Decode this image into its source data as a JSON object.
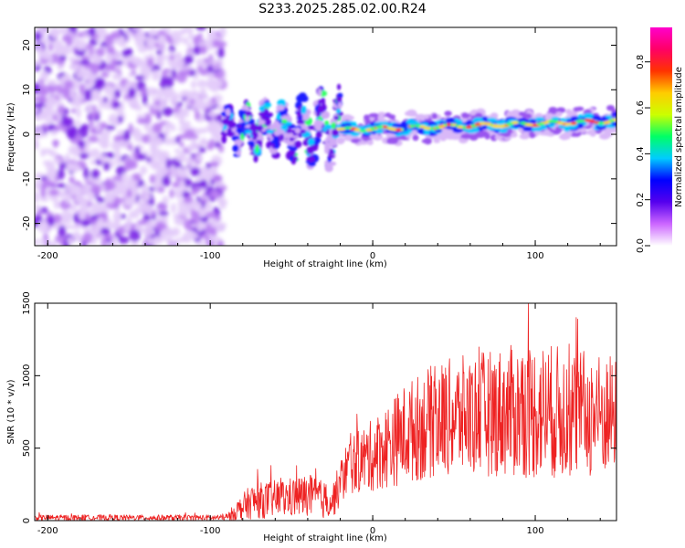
{
  "title": "S233.2025.285.02.00.R24",
  "chart_data": [
    {
      "type": "heatmap",
      "name": "spectrogram",
      "xlabel": "Height of straight line (km)",
      "ylabel": "Frequency (Hz)",
      "xlim": [
        -208,
        150
      ],
      "ylim": [
        -25,
        24
      ],
      "xticks": [
        -200,
        -100,
        0,
        100
      ],
      "xtick_labels": [
        "-200",
        "-100",
        "0",
        "100"
      ],
      "yticks": [
        -20,
        -10,
        0,
        10,
        20
      ],
      "ytick_labels": [
        "-20",
        "-10",
        "0",
        "10",
        "20"
      ],
      "colorbar": {
        "label": "Normalized spectral amplitude",
        "range": [
          0.0,
          0.95
        ],
        "ticks": [
          0.0,
          0.2,
          0.4,
          0.6,
          0.8
        ],
        "tick_labels": [
          "0.0",
          "0.2",
          "0.4",
          "0.6",
          "0.8"
        ],
        "colors": [
          "#ffffff",
          "#cc66ff",
          "#5500ee",
          "#0000ff",
          "#00ccff",
          "#00ff66",
          "#ccff00",
          "#ffcc00",
          "#ff3300",
          "#ff0066",
          "#ff00cc"
        ]
      },
      "regions": [
        {
          "description": "noise",
          "x_range": [
            -208,
            -92
          ],
          "freq_range": [
            -25,
            24
          ]
        },
        {
          "description": "turbulent multipath",
          "x_range": [
            -92,
            -20
          ],
          "freq_range": [
            -8,
            8
          ]
        },
        {
          "description": "stable carrier",
          "x_range": [
            -20,
            150
          ],
          "freq_center": [
            1,
            3
          ]
        }
      ]
    },
    {
      "type": "line",
      "name": "snr",
      "xlabel": "Height of straight line (km)",
      "ylabel": "SNR (10 * v/v)",
      "xlim": [
        -208,
        150
      ],
      "ylim": [
        0,
        1500
      ],
      "xticks": [
        -200,
        -100,
        0,
        100
      ],
      "xtick_labels": [
        "-200",
        "-100",
        "0",
        "100"
      ],
      "yticks": [
        0,
        500,
        1000,
        1500
      ],
      "ytick_labels": [
        "0",
        "500",
        "1000",
        "1500"
      ],
      "color": "#ee2222",
      "envelope": [
        {
          "x": -208,
          "mean": 20,
          "spread": 20
        },
        {
          "x": -90,
          "mean": 20,
          "spread": 20
        },
        {
          "x": -85,
          "mean": 60,
          "spread": 60
        },
        {
          "x": -75,
          "mean": 130,
          "spread": 120
        },
        {
          "x": -60,
          "mean": 150,
          "spread": 130
        },
        {
          "x": -40,
          "mean": 170,
          "spread": 150
        },
        {
          "x": -25,
          "mean": 130,
          "spread": 120
        },
        {
          "x": -15,
          "mean": 380,
          "spread": 200
        },
        {
          "x": 0,
          "mean": 450,
          "spread": 250
        },
        {
          "x": 20,
          "mean": 600,
          "spread": 350
        },
        {
          "x": 40,
          "mean": 700,
          "spread": 400
        },
        {
          "x": 60,
          "mean": 730,
          "spread": 420
        },
        {
          "x": 80,
          "mean": 750,
          "spread": 450
        },
        {
          "x": 100,
          "mean": 760,
          "spread": 480
        },
        {
          "x": 120,
          "mean": 740,
          "spread": 460
        },
        {
          "x": 150,
          "mean": 720,
          "spread": 420
        }
      ]
    }
  ]
}
